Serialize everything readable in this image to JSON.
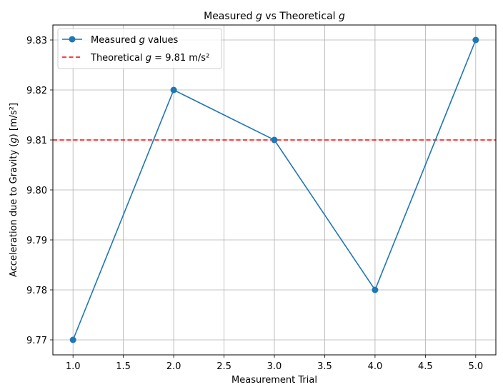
{
  "chart_data": {
    "type": "line",
    "title": "Measured g vs Theoretical g",
    "title_parts": [
      "Measured ",
      "g",
      " vs Theoretical ",
      "g"
    ],
    "xlabel": "Measurement Trial",
    "ylabel_parts": [
      "Acceleration due to Gravity (",
      "g",
      ") [m/s²]"
    ],
    "ylabel": "Acceleration due to Gravity (g) [m/s²]",
    "xlim": [
      0.8,
      5.2
    ],
    "ylim": [
      9.767,
      9.833
    ],
    "x_ticks": [
      1.0,
      1.5,
      2.0,
      2.5,
      3.0,
      3.5,
      4.0,
      4.5,
      5.0
    ],
    "x_tick_labels": [
      "1.0",
      "1.5",
      "2.0",
      "2.5",
      "3.0",
      "3.5",
      "4.0",
      "4.5",
      "5.0"
    ],
    "y_ticks": [
      9.77,
      9.78,
      9.79,
      9.8,
      9.81,
      9.82,
      9.83
    ],
    "y_tick_labels": [
      "9.77",
      "9.78",
      "9.79",
      "9.80",
      "9.81",
      "9.82",
      "9.83"
    ],
    "grid": true,
    "legend_position": "top-left",
    "series": [
      {
        "name": "Measured g values",
        "legend_parts": [
          "Measured ",
          "g",
          " values"
        ],
        "x": [
          1,
          2,
          3,
          4,
          5
        ],
        "y": [
          9.77,
          9.82,
          9.81,
          9.78,
          9.83
        ],
        "color": "#1f77b4",
        "style": "solid",
        "marker": "circle"
      }
    ],
    "reference_lines": [
      {
        "name": "Theoretical g = 9.81 m/s²",
        "legend_parts": [
          "Theoretical ",
          "g",
          " = 9.81 m/s²"
        ],
        "y": 9.81,
        "color": "#ff0000",
        "style": "dashed"
      }
    ]
  }
}
